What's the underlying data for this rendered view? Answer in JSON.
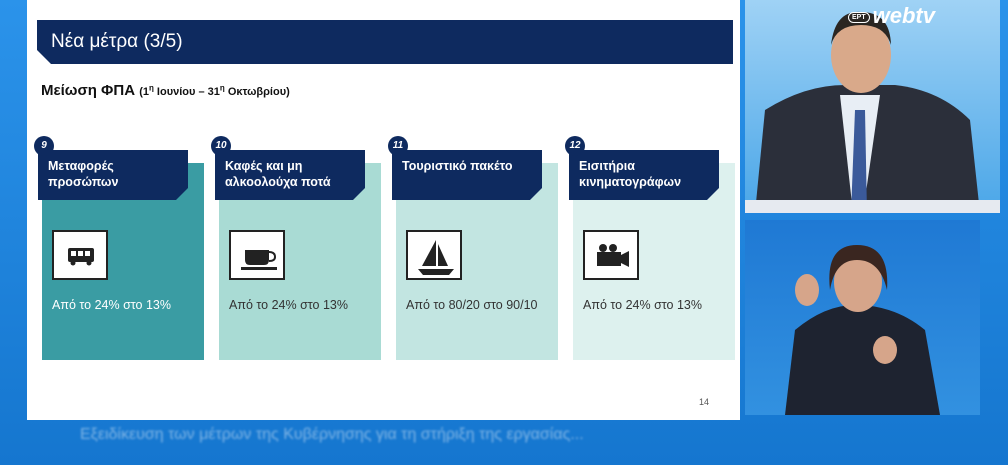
{
  "logo": {
    "brand": "ΕΡΤ",
    "service": "webtv"
  },
  "slide": {
    "title": "Νέα μέτρα (3/5)",
    "heading": "Μείωση ΦΠΑ",
    "period": [
      "(1",
      "η",
      " Ιουνίου – 31",
      "η",
      " Οκτωβρίου)"
    ],
    "cards": [
      {
        "number": "9",
        "title": "Μεταφορές προσώπων",
        "text": "Από το 24% στο 13%"
      },
      {
        "number": "10",
        "title": "Καφές και μη αλκοολούχα ποτά",
        "text": "Από το 24% στο 13%"
      },
      {
        "number": "11",
        "title": "Τουριστικό πακέτο",
        "text": "Από το 80/20 στο 90/10"
      },
      {
        "number": "12",
        "title": "Εισιτήρια κινηματογράφων",
        "text": "Από το 24% στο 13%"
      }
    ],
    "page": "14"
  },
  "ticker": "Εξειδίκευση των μέτρων της Κυβέρνησης για τη στήριξη της εργασίας..."
}
